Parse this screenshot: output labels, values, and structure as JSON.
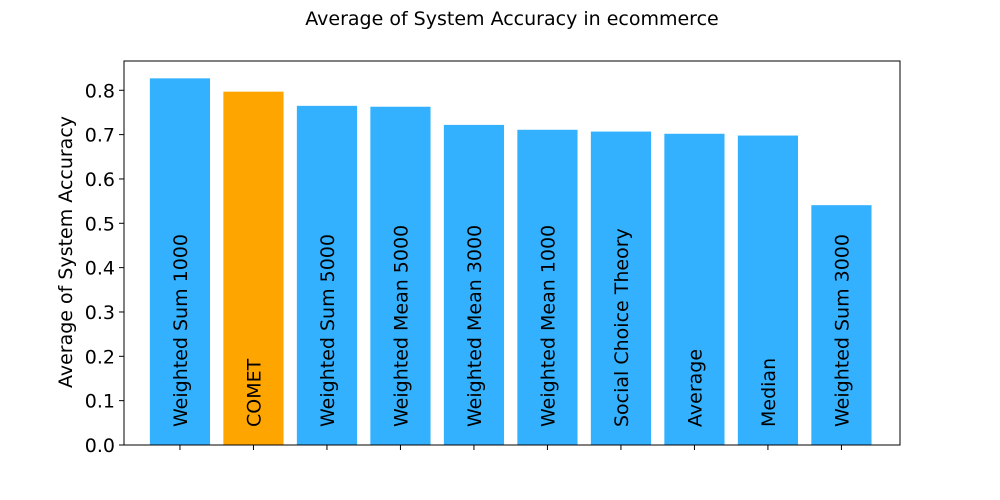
{
  "chart_data": {
    "type": "bar",
    "title": "Average of System Accuracy in ecommerce",
    "xlabel": "",
    "ylabel": "Average of System Accuracy",
    "ylim": [
      0,
      0.866
    ],
    "yticks": [
      0.0,
      0.1,
      0.2,
      0.3,
      0.4,
      0.5,
      0.6,
      0.7,
      0.8
    ],
    "ytick_labels": [
      "0.0",
      "0.1",
      "0.2",
      "0.3",
      "0.4",
      "0.5",
      "0.6",
      "0.7",
      "0.8"
    ],
    "grid": false,
    "categories": [
      "Weighted Sum 1000",
      "COMET",
      "Weighted Sum 5000",
      "Weighted Mean 5000",
      "Weighted Mean 3000",
      "Weighted Mean 1000",
      "Social Choice Theory",
      "Average",
      "Median",
      "Weighted Sum 3000"
    ],
    "values": [
      0.828,
      0.798,
      0.766,
      0.764,
      0.723,
      0.712,
      0.708,
      0.703,
      0.699,
      0.542
    ],
    "colors": [
      "#33b1ff",
      "#ffa500",
      "#33b1ff",
      "#33b1ff",
      "#33b1ff",
      "#33b1ff",
      "#33b1ff",
      "#33b1ff",
      "#33b1ff",
      "#33b1ff"
    ]
  }
}
